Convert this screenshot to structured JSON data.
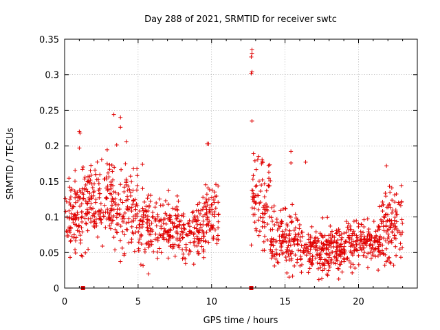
{
  "chart_data": {
    "type": "scatter",
    "title": "Day 288 of 2021, SRMTID for receiver swtc",
    "xlabel": "GPS time / hours",
    "ylabel": "SRMTID / TECUs",
    "xlim": [
      0,
      24
    ],
    "ylim": [
      0,
      0.35
    ],
    "x_ticks": [
      0,
      5,
      10,
      15,
      20
    ],
    "x_tick_labels": [
      "0",
      "5",
      "10",
      "15",
      "20"
    ],
    "y_ticks": [
      0,
      0.05,
      0.1,
      0.15,
      0.2,
      0.25,
      0.3,
      0.35
    ],
    "y_tick_labels": [
      "0",
      "0.05",
      "0.1",
      "0.15",
      "0.2",
      "0.25",
      "0.3",
      "0.35"
    ],
    "grid": true,
    "marker": "plus",
    "color": "#e00000",
    "density_profile": [
      {
        "x_range": [
          0.0,
          1.2
        ],
        "center": 0.105,
        "spread": 0.03,
        "count": 90
      },
      {
        "x_range": [
          1.2,
          3.0
        ],
        "center": 0.12,
        "spread": 0.035,
        "count": 130
      },
      {
        "x_range": [
          3.0,
          5.0
        ],
        "center": 0.115,
        "spread": 0.035,
        "count": 140
      },
      {
        "x_range": [
          5.0,
          7.5
        ],
        "center": 0.085,
        "spread": 0.025,
        "count": 160
      },
      {
        "x_range": [
          7.5,
          9.5
        ],
        "center": 0.075,
        "spread": 0.025,
        "count": 140
      },
      {
        "x_range": [
          9.5,
          10.5
        ],
        "center": 0.105,
        "spread": 0.03,
        "count": 70
      },
      {
        "x_range": [
          12.7,
          14.0
        ],
        "center": 0.12,
        "spread": 0.035,
        "count": 80
      },
      {
        "x_range": [
          14.0,
          16.0
        ],
        "center": 0.07,
        "spread": 0.025,
        "count": 140
      },
      {
        "x_range": [
          16.0,
          19.0
        ],
        "center": 0.055,
        "spread": 0.02,
        "count": 220
      },
      {
        "x_range": [
          19.0,
          21.5
        ],
        "center": 0.065,
        "spread": 0.02,
        "count": 170
      },
      {
        "x_range": [
          21.5,
          23.0
        ],
        "center": 0.09,
        "spread": 0.03,
        "count": 110
      }
    ],
    "notable_points": [
      {
        "x": 1.0,
        "y": 0.22
      },
      {
        "x": 1.05,
        "y": 0.218
      },
      {
        "x": 3.35,
        "y": 0.244
      },
      {
        "x": 3.8,
        "y": 0.24
      },
      {
        "x": 3.8,
        "y": 0.226
      },
      {
        "x": 4.2,
        "y": 0.206
      },
      {
        "x": 9.7,
        "y": 0.203
      },
      {
        "x": 9.8,
        "y": 0.203
      },
      {
        "x": 12.75,
        "y": 0.335
      },
      {
        "x": 12.75,
        "y": 0.33
      },
      {
        "x": 12.7,
        "y": 0.325
      },
      {
        "x": 12.75,
        "y": 0.304
      },
      {
        "x": 12.7,
        "y": 0.302
      },
      {
        "x": 12.75,
        "y": 0.235
      },
      {
        "x": 12.85,
        "y": 0.189
      },
      {
        "x": 15.4,
        "y": 0.192
      },
      {
        "x": 15.4,
        "y": 0.176
      },
      {
        "x": 16.4,
        "y": 0.177
      },
      {
        "x": 21.9,
        "y": 0.172
      },
      {
        "x": 1.0,
        "y": 0.197
      },
      {
        "x": 5.3,
        "y": 0.174
      },
      {
        "x": 5.7,
        "y": 0.02
      },
      {
        "x": 17.5,
        "y": 0.013
      },
      {
        "x": 17.9,
        "y": 0.018
      }
    ],
    "zero_markers": [
      {
        "x": 1.25,
        "y": 0
      },
      {
        "x": 12.7,
        "y": 0
      }
    ]
  }
}
